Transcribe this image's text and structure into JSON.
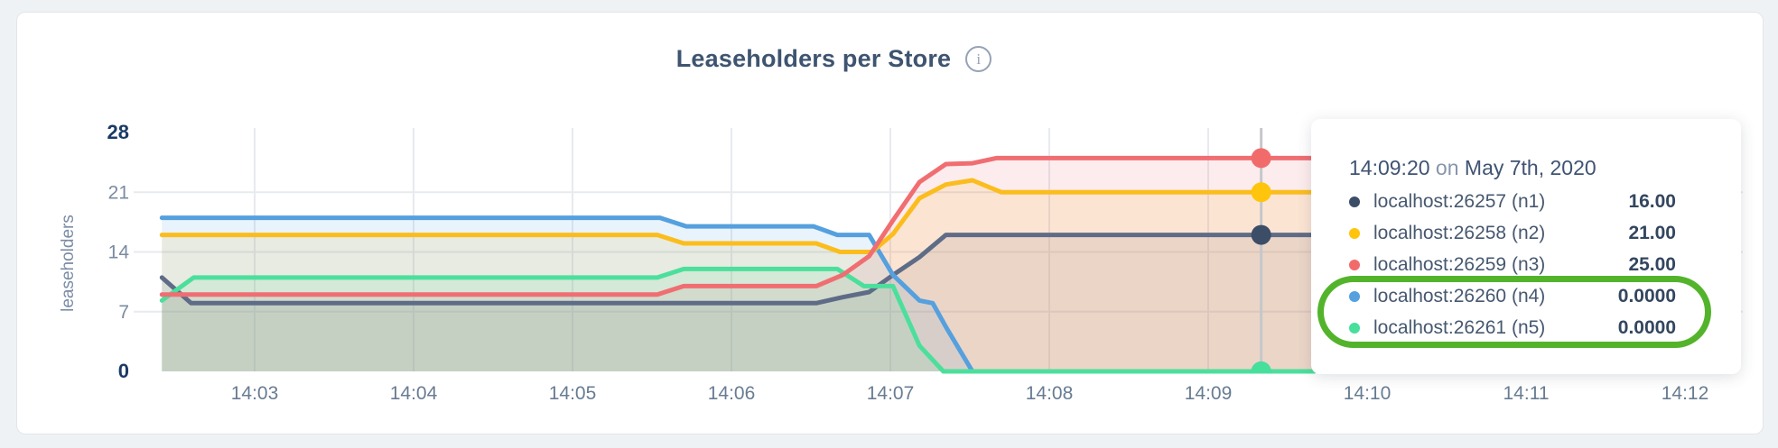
{
  "header": {
    "title": "Leaseholders per Store",
    "info_icon": "i"
  },
  "tooltip": {
    "time": "14:09:20",
    "on_word": "on",
    "date": "May 7th, 2020",
    "rows": [
      {
        "label": "localhost:26257 (n1)",
        "value": "16.00",
        "color": "#3C4D68"
      },
      {
        "label": "localhost:26258 (n2)",
        "value": "21.00",
        "color": "#FFC40C"
      },
      {
        "label": "localhost:26259 (n3)",
        "value": "25.00",
        "color": "#F26B6B"
      },
      {
        "label": "localhost:26260 (n4)",
        "value": "0.0000",
        "color": "#55A0DE"
      },
      {
        "label": "localhost:26261 (n5)",
        "value": "0.0000",
        "color": "#47DF9C"
      }
    ],
    "highlight_color": "#53B42C"
  },
  "colors": {
    "page_bg": "#EFF2F5",
    "card_bg": "#FFFFFF",
    "card_border": "#E2E6EA",
    "grid": "#E7EAEF",
    "title_text": "#3E5470",
    "x_axis_text": "#687C92",
    "y_axis_text": "#7A8BA1",
    "y_axis_text_bold": "#1A3A66",
    "hover_line": "#C5C7CA",
    "highlight": "#53B42C"
  },
  "chart_data": {
    "type": "area",
    "title": "Leaseholders per Store",
    "xlabel": "",
    "ylabel": "leaseholders",
    "ylim": [
      0,
      28
    ],
    "grid": true,
    "legend_position": "tooltip",
    "y_gridlines": [
      7,
      14,
      21
    ],
    "yticks": [
      {
        "label": "0",
        "value": 0,
        "bold": true
      },
      {
        "label": "7",
        "value": 7,
        "bold": false
      },
      {
        "label": "14",
        "value": 14,
        "bold": false
      },
      {
        "label": "21",
        "value": 21,
        "bold": false
      },
      {
        "label": "28",
        "value": 28,
        "bold": true
      }
    ],
    "xticks": [
      {
        "label": "14:03",
        "seconds": 180
      },
      {
        "label": "14:04",
        "seconds": 240
      },
      {
        "label": "14:05",
        "seconds": 300
      },
      {
        "label": "14:06",
        "seconds": 360
      },
      {
        "label": "14:07",
        "seconds": 420
      },
      {
        "label": "14:08",
        "seconds": 480
      },
      {
        "label": "14:09",
        "seconds": 540
      },
      {
        "label": "14:10",
        "seconds": 600
      },
      {
        "label": "14:11",
        "seconds": 660
      },
      {
        "label": "14:12",
        "seconds": 720
      }
    ],
    "series": [
      {
        "name": "localhost:26257 (n1)",
        "color": "#5F6C87",
        "dot_color": "#3C4D68",
        "points": [
          [
            145,
            11
          ],
          [
            156,
            8
          ],
          [
            392,
            8
          ],
          [
            402,
            8.7
          ],
          [
            412,
            9.3
          ],
          [
            421,
            11.3
          ],
          [
            431,
            13.4
          ],
          [
            441,
            16
          ],
          [
            580,
            16
          ]
        ]
      },
      {
        "name": "localhost:26258 (n2)",
        "color": "#FBBD1D",
        "dot_color": "#FFC40C",
        "points": [
          [
            145,
            16
          ],
          [
            332,
            16
          ],
          [
            342,
            15
          ],
          [
            392,
            15
          ],
          [
            401,
            14
          ],
          [
            413,
            14
          ],
          [
            421,
            16.1
          ],
          [
            431,
            20.3
          ],
          [
            441,
            21.9
          ],
          [
            451,
            22.4
          ],
          [
            462,
            21
          ],
          [
            580,
            21
          ]
        ]
      },
      {
        "name": "localhost:26259 (n3)",
        "color": "#F06E72",
        "dot_color": "#F26B6B",
        "points": [
          [
            145,
            9
          ],
          [
            332,
            9
          ],
          [
            342,
            10
          ],
          [
            392,
            10
          ],
          [
            402,
            11.3
          ],
          [
            412,
            13.5
          ],
          [
            421,
            17.7
          ],
          [
            431,
            22.2
          ],
          [
            441,
            24.3
          ],
          [
            451,
            24.4
          ],
          [
            460,
            25
          ],
          [
            580,
            25
          ]
        ]
      },
      {
        "name": "localhost:26260 (n4)",
        "color": "#55A0DE",
        "dot_color": "#55A0DE",
        "points": [
          [
            145,
            18
          ],
          [
            333,
            18
          ],
          [
            343,
            17
          ],
          [
            391,
            17
          ],
          [
            400,
            16
          ],
          [
            412,
            16
          ],
          [
            421,
            11.3
          ],
          [
            431,
            8.3
          ],
          [
            436,
            8
          ],
          [
            441,
            5.2
          ],
          [
            451,
            0
          ],
          [
            580,
            0
          ]
        ]
      },
      {
        "name": "localhost:26261 (n5)",
        "color": "#4CDF9C",
        "dot_color": "#47DF9C",
        "points": [
          [
            145,
            8.3
          ],
          [
            157,
            11
          ],
          [
            332,
            11
          ],
          [
            342,
            12
          ],
          [
            400,
            12
          ],
          [
            410,
            10
          ],
          [
            421,
            10
          ],
          [
            431,
            3
          ],
          [
            440,
            0
          ],
          [
            580,
            0
          ]
        ]
      }
    ],
    "hover": {
      "time": "14:09:20",
      "seconds": 560,
      "values": [
        16,
        21,
        25,
        0,
        0
      ]
    }
  }
}
